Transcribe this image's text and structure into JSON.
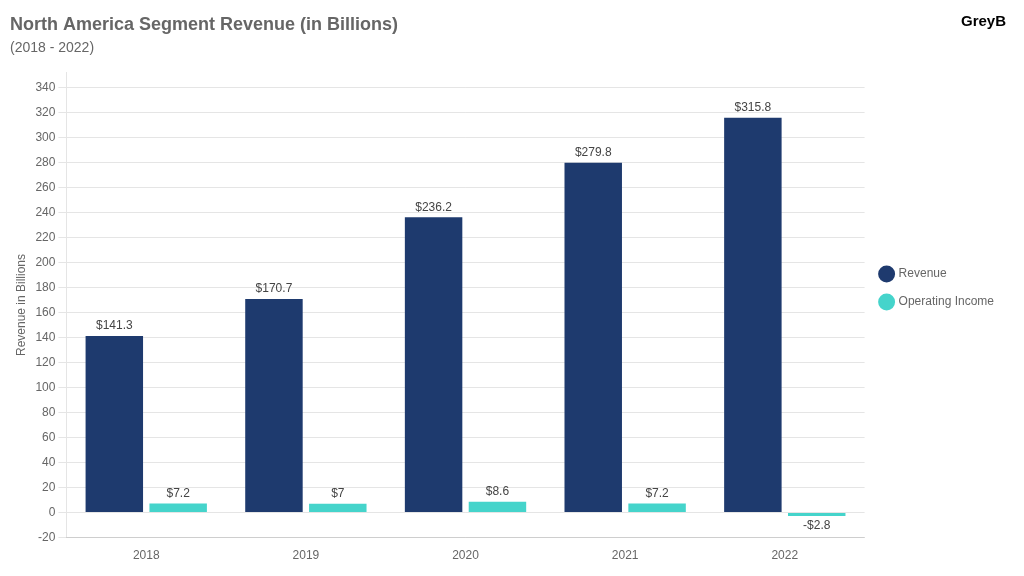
{
  "chart_data": {
    "type": "bar",
    "title": "North America Segment Revenue (in Billions)",
    "subtitle": "(2018 - 2022)",
    "ylabel": "Revenue in Billions",
    "categories": [
      "2018",
      "2019",
      "2020",
      "2021",
      "2022"
    ],
    "series": [
      {
        "name": "Revenue",
        "color": "#1e3a6e",
        "values": [
          141.3,
          170.7,
          236.2,
          279.8,
          315.8
        ],
        "value_labels": [
          "$141.3",
          "$170.7",
          "$236.2",
          "$279.8",
          "$315.8"
        ]
      },
      {
        "name": "Operating Income",
        "color": "#45d4cb",
        "values": [
          7.2,
          7.0,
          8.6,
          7.2,
          -2.8
        ],
        "value_labels": [
          "$7.2",
          "$7",
          "$8.6",
          "$7.2",
          "-$2.8"
        ]
      }
    ],
    "ylim": [
      -20,
      352
    ],
    "yticks": [
      -20,
      0,
      20,
      40,
      60,
      80,
      100,
      120,
      140,
      160,
      180,
      200,
      220,
      240,
      260,
      280,
      300,
      320,
      340
    ],
    "grid": true,
    "legend": "right",
    "data_labels": true,
    "annotations": [
      "GreyB"
    ]
  }
}
